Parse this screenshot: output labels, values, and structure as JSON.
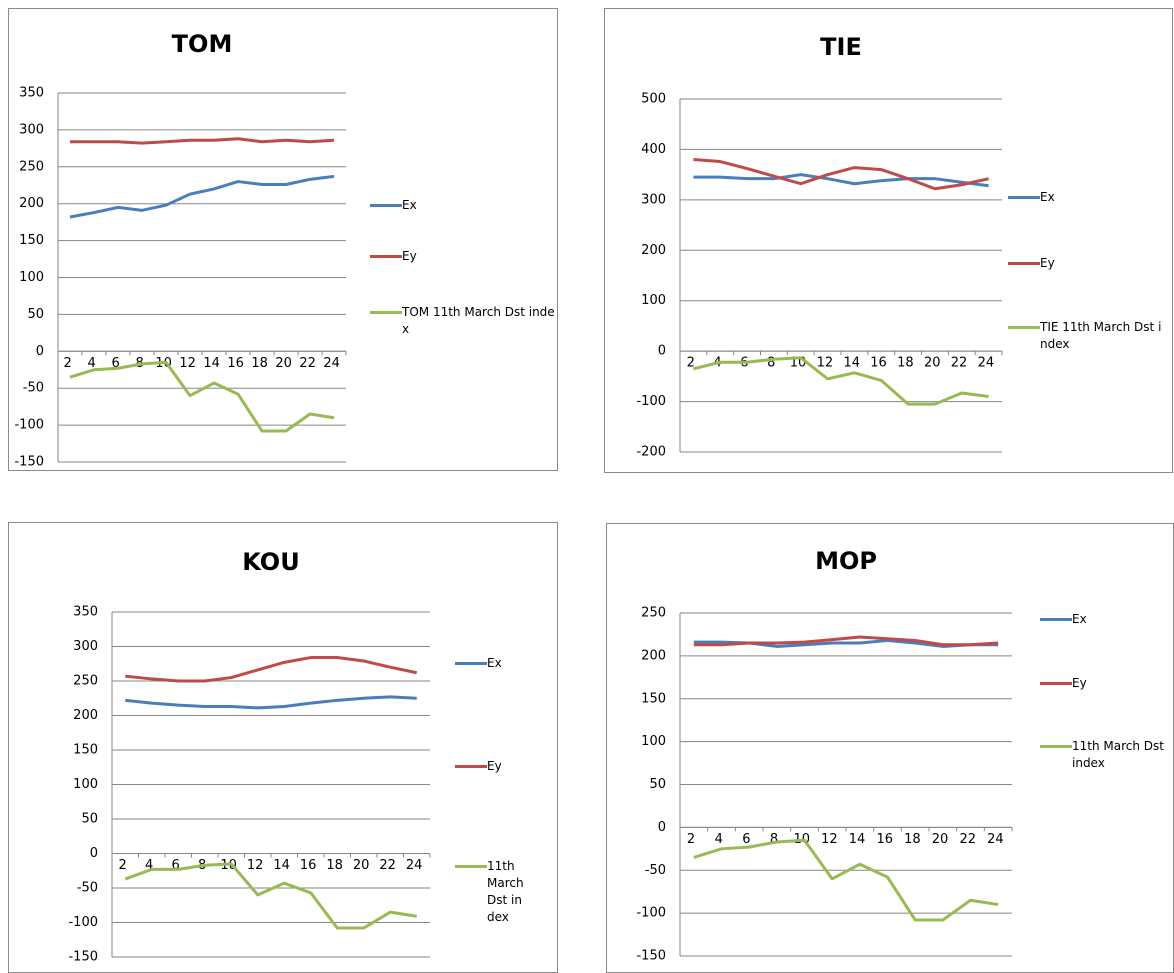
{
  "chart_data": [
    {
      "type": "line",
      "title": "TOM",
      "categories": [
        2,
        4,
        6,
        8,
        10,
        12,
        14,
        16,
        18,
        20,
        22,
        24
      ],
      "series": [
        {
          "name": "Ex",
          "color": "#4a7ebb",
          "values": [
            182,
            188,
            195,
            191,
            198,
            213,
            220,
            230,
            226,
            226,
            233,
            237
          ]
        },
        {
          "name": "Ey",
          "color": "#be4b48",
          "values": [
            284,
            284,
            284,
            282,
            284,
            286,
            286,
            288,
            284,
            286,
            284,
            286
          ]
        },
        {
          "name": "TOM 11th March Dst index",
          "color": "#98b954",
          "values": [
            -35,
            -25,
            -23,
            -17,
            -15,
            -60,
            -43,
            -58,
            -108,
            -108,
            -85,
            -90
          ]
        }
      ],
      "ylim": [
        -150,
        350
      ],
      "yticks": [
        -150,
        -100,
        -50,
        0,
        50,
        100,
        150,
        200,
        250,
        300,
        350
      ],
      "grid": true,
      "legend": "right"
    },
    {
      "type": "line",
      "title": "TIE",
      "categories": [
        2,
        4,
        6,
        8,
        10,
        12,
        14,
        16,
        18,
        20,
        22,
        24
      ],
      "series": [
        {
          "name": "Ex",
          "color": "#4a7ebb",
          "values": [
            345,
            345,
            342,
            342,
            350,
            342,
            332,
            338,
            342,
            342,
            335,
            328
          ]
        },
        {
          "name": "Ey",
          "color": "#be4b48",
          "values": [
            380,
            376,
            362,
            347,
            332,
            350,
            364,
            360,
            342,
            322,
            330,
            342
          ]
        },
        {
          "name": "TIE 11th March Dst index",
          "color": "#98b954",
          "values": [
            -35,
            -22,
            -22,
            -16,
            -13,
            -55,
            -43,
            -58,
            -105,
            -105,
            -83,
            -90
          ]
        }
      ],
      "ylim": [
        -200,
        500
      ],
      "yticks": [
        -200,
        -100,
        0,
        100,
        200,
        300,
        400,
        500
      ],
      "grid": true,
      "legend": "right"
    },
    {
      "type": "line",
      "title": "KOU",
      "categories": [
        2,
        4,
        6,
        8,
        10,
        12,
        14,
        16,
        18,
        20,
        22,
        24
      ],
      "series": [
        {
          "name": "Ex",
          "color": "#4a7ebb",
          "values": [
            222,
            218,
            215,
            213,
            213,
            211,
            213,
            218,
            222,
            225,
            227,
            225
          ]
        },
        {
          "name": "Ey",
          "color": "#be4b48",
          "values": [
            257,
            253,
            250,
            250,
            255,
            266,
            277,
            284,
            284,
            279,
            270,
            262
          ]
        },
        {
          "name": "11th March Dst index",
          "color": "#98b954",
          "values": [
            -37,
            -23,
            -23,
            -17,
            -15,
            -60,
            -43,
            -57,
            -108,
            -108,
            -85,
            -91
          ]
        }
      ],
      "ylim": [
        -150,
        350
      ],
      "yticks": [
        -150,
        -100,
        -50,
        0,
        50,
        100,
        150,
        200,
        250,
        300,
        350
      ],
      "grid": true,
      "legend": "right"
    },
    {
      "type": "line",
      "title": "MOP",
      "categories": [
        2,
        4,
        6,
        8,
        10,
        12,
        14,
        16,
        18,
        20,
        22,
        24
      ],
      "series": [
        {
          "name": "Ex",
          "color": "#4a7ebb",
          "values": [
            216,
            216,
            215,
            211,
            213,
            215,
            215,
            218,
            215,
            211,
            213,
            213
          ]
        },
        {
          "name": "Ey",
          "color": "#be4b48",
          "values": [
            213,
            213,
            215,
            215,
            216,
            219,
            222,
            220,
            218,
            213,
            213,
            215
          ]
        },
        {
          "name": "11th March Dst index",
          "color": "#98b954",
          "values": [
            -35,
            -25,
            -23,
            -17,
            -15,
            -60,
            -43,
            -58,
            -108,
            -108,
            -85,
            -90
          ]
        }
      ],
      "ylim": [
        -150,
        250
      ],
      "yticks": [
        -150,
        -100,
        -50,
        0,
        50,
        100,
        150,
        200,
        250
      ],
      "grid": true,
      "legend": "right"
    }
  ]
}
